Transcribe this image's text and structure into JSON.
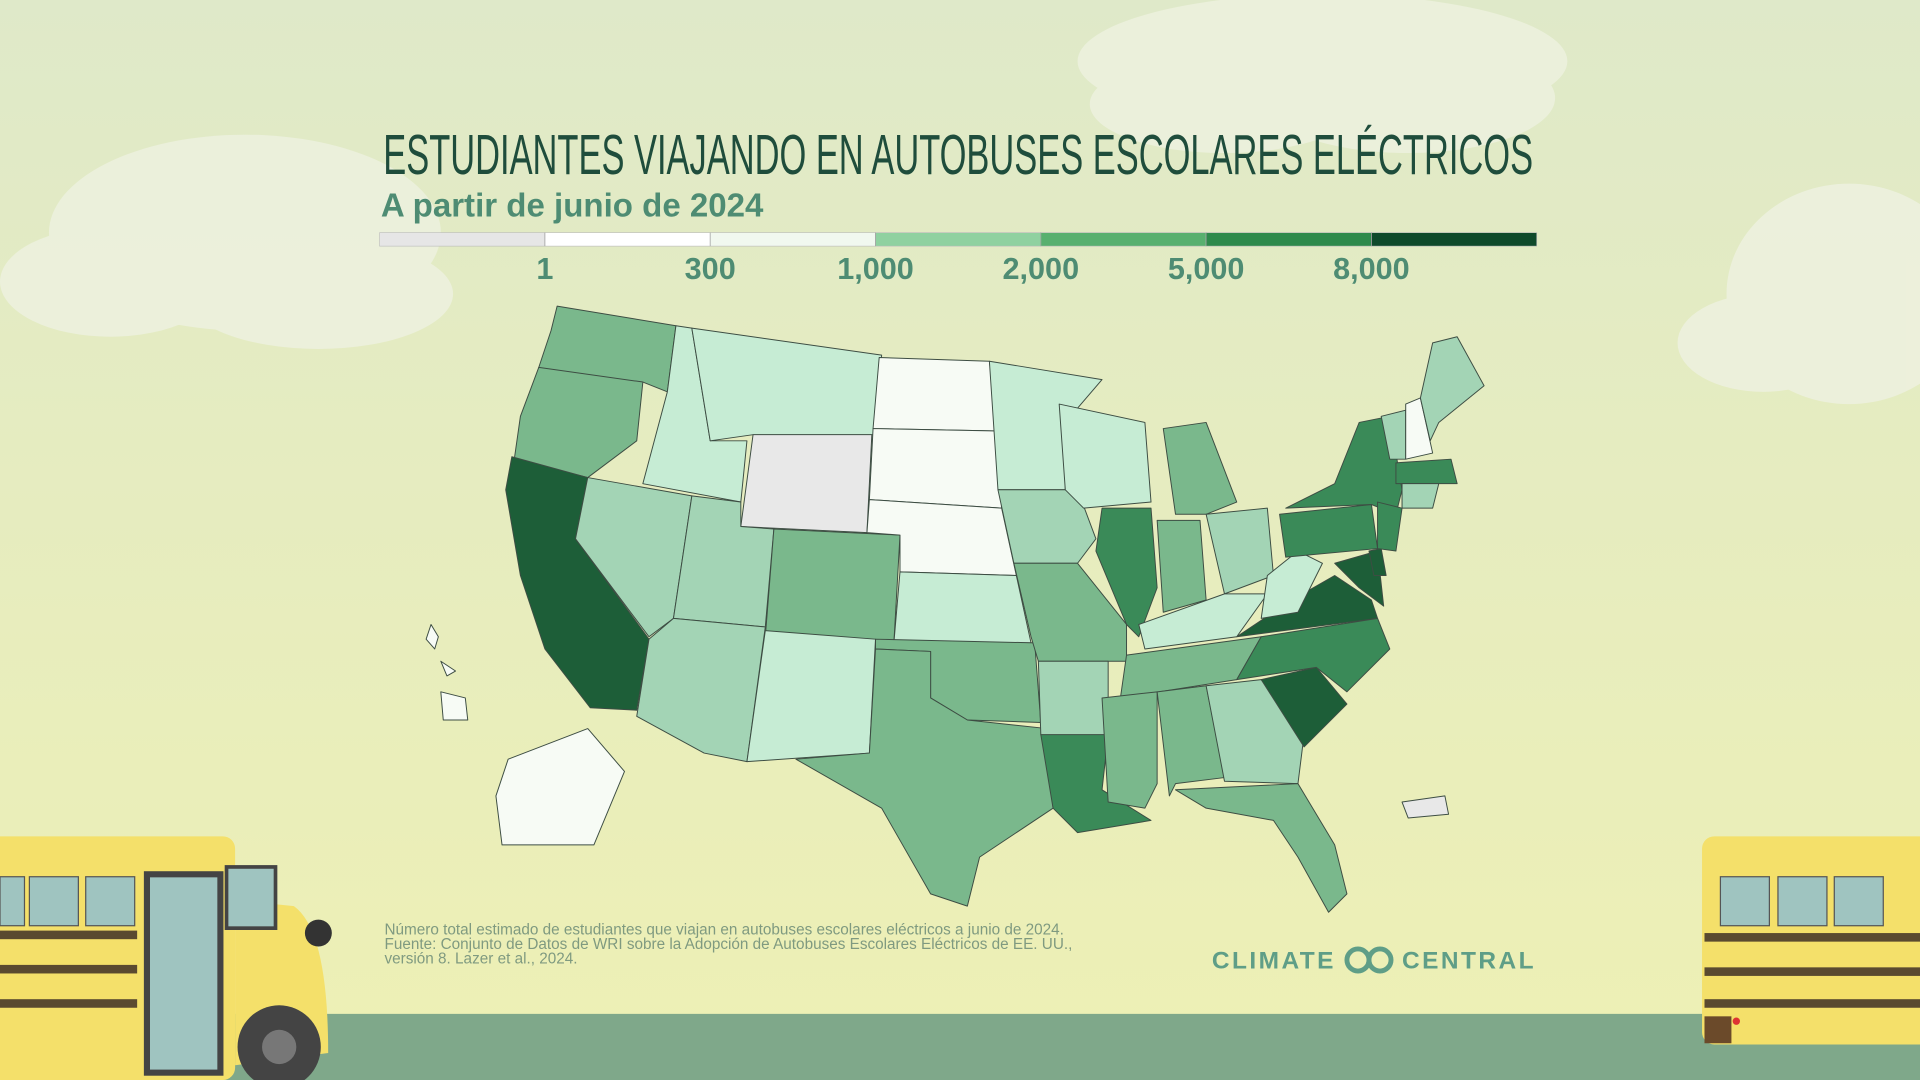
{
  "title": "ESTUDIANTES VIAJANDO EN AUTOBUSES ESCOLARES ELÉCTRICOS",
  "subtitle": "A partir de junio de 2024",
  "legend": {
    "colors": [
      "#e6e6e6",
      "#ffffff",
      "#f1f8ef",
      "#8fd1a0",
      "#58b06f",
      "#2e8a4c",
      "#0f4a2b"
    ],
    "ticks": [
      1,
      300,
      {
        "value": 1000,
        "label": "1,000"
      },
      {
        "value": 2000,
        "label": "2,000"
      },
      {
        "value": 5000,
        "label": "5,000"
      },
      {
        "value": 8000,
        "label": "8,000"
      }
    ]
  },
  "state_fills": [
    "#7ab88c",
    "#7ab88c",
    "#1d5e38",
    "#c6ecd4",
    "#a3d4b5",
    "#c6ecd4",
    "#e8e8e8",
    "#a3d4b5",
    "#a3d4b5",
    "#7ab88c",
    "#c6ecd4",
    "#f7fbf5",
    "#f7fbf5",
    "#f7fbf5",
    "#c6ecd4",
    "#7ab88c",
    "#7ab88c",
    "#c6ecd4",
    "#a3d4b5",
    "#7ab88c",
    "#a3d4b5",
    "#3a8a58",
    "#c6ecd4",
    "#3a8a58",
    "#7ab88c",
    "#7ab88c",
    "#a3d4b5",
    "#c6ecd4",
    "#7ab88c",
    "#7ab88c",
    "#7ab88c",
    "#a3d4b5",
    "#7ab88c",
    "#1d5e38",
    "#1d5e38",
    "#3a8a58",
    "#1d5e38",
    "#c6ecd4",
    "#3a8a58",
    "#3a8a58",
    "#1d5e38",
    "#3a8a58",
    "#a3d4b5",
    "#f7fbf5",
    "#a3d4b5",
    "#3a8a58",
    "#a3d4b5",
    "#f7fbf5",
    "#f7fbf5",
    "#e8e8e8"
  ],
  "footnote": [
    "Número total estimado de estudiantes que viajan en autobuses escolares eléctricos a junio de 2024.",
    "Fuente: Conjunto de Datos de WRI sobre la Adopción de Autobuses Escolares Eléctricos de EE. UU.,",
    "versión 8. Lazer et al., 2024."
  ],
  "logo_left": "CLIMATE",
  "logo_right": "CENTRAL"
}
